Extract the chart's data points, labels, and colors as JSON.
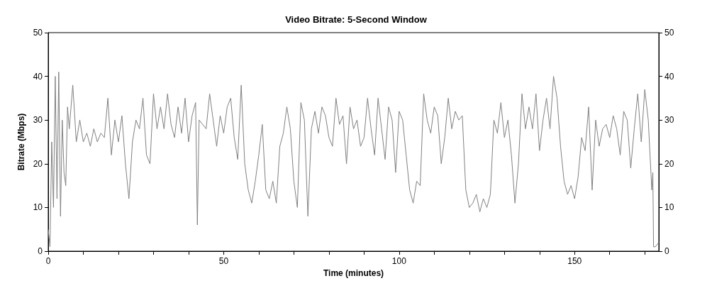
{
  "chart_data": {
    "type": "line",
    "title": "Video Bitrate: 5-Second Window",
    "xlabel": "Time (minutes)",
    "ylabel": "Bitrate (Mbps)",
    "xlim": [
      0,
      174
    ],
    "ylim": [
      0,
      50
    ],
    "y2lim": [
      0,
      50
    ],
    "xticks": [
      0,
      {
        "value": 10,
        "label": null
      },
      {
        "value": 20,
        "label": null
      },
      {
        "value": 30,
        "label": null
      },
      {
        "value": 40,
        "label": null
      },
      50,
      {
        "value": 60,
        "label": null
      },
      {
        "value": 70,
        "label": null
      },
      {
        "value": 80,
        "label": null
      },
      {
        "value": 90,
        "label": null
      },
      100,
      {
        "value": 110,
        "label": null
      },
      {
        "value": 120,
        "label": null
      },
      {
        "value": 130,
        "label": null
      },
      {
        "value": 140,
        "label": null
      },
      150,
      {
        "value": 160,
        "label": null
      },
      {
        "value": 170,
        "label": null
      }
    ],
    "yticks": [
      0,
      10,
      20,
      30,
      40,
      50
    ],
    "y2ticks": [
      0,
      10,
      20,
      30,
      40,
      50
    ],
    "marker": "none",
    "line_style": "solid",
    "series": [
      {
        "color": "#808080",
        "x": [
          0,
          0.5,
          1,
          1.5,
          2,
          2.5,
          3,
          3.5,
          4,
          4.5,
          5,
          5.5,
          6,
          7,
          8,
          9,
          10,
          11,
          12,
          13,
          14,
          15,
          16,
          17,
          18,
          19,
          20,
          21,
          22,
          23,
          24,
          25,
          26,
          27,
          28,
          29,
          30,
          31,
          32,
          33,
          34,
          35,
          36,
          37,
          38,
          39,
          40,
          41,
          42,
          42.5,
          43,
          45,
          46,
          47,
          48,
          49,
          50,
          51,
          52,
          53,
          54,
          55,
          56,
          57,
          58,
          59,
          60,
          61,
          62,
          63,
          64,
          65,
          66,
          67,
          68,
          69,
          70,
          71,
          72,
          73,
          74,
          75,
          76,
          77,
          78,
          79,
          80,
          81,
          82,
          83,
          84,
          85,
          86,
          87,
          88,
          89,
          90,
          91,
          92,
          93,
          94,
          95,
          96,
          97,
          98,
          99,
          100,
          101,
          102,
          103,
          104,
          105,
          106,
          107,
          108,
          109,
          110,
          111,
          112,
          113,
          114,
          115,
          116,
          117,
          118,
          119,
          120,
          121,
          122,
          123,
          124,
          125,
          126,
          127,
          128,
          129,
          130,
          131,
          132,
          133,
          134,
          135,
          136,
          137,
          138,
          139,
          140,
          141,
          142,
          143,
          144,
          145,
          146,
          147,
          148,
          149,
          150,
          151,
          152,
          153,
          154,
          155,
          156,
          157,
          158,
          159,
          160,
          161,
          162,
          163,
          164,
          165,
          166,
          167,
          168,
          169,
          170,
          171,
          172,
          172.3,
          172.5,
          173,
          174
        ],
        "values": [
          5,
          1,
          25,
          10,
          40,
          12,
          41,
          8,
          30,
          18,
          15,
          33,
          28,
          38,
          25,
          30,
          25,
          27,
          24,
          28,
          25,
          27,
          26,
          35,
          22,
          30,
          25,
          31,
          20,
          12,
          25,
          30,
          28,
          35,
          22,
          20,
          36,
          28,
          33,
          28,
          36,
          29,
          26,
          33,
          27,
          35,
          25,
          31,
          34,
          6,
          30,
          28,
          36,
          30,
          24,
          31,
          27,
          33,
          35,
          26,
          21,
          38,
          20,
          14,
          11,
          16,
          22,
          29,
          14,
          12,
          16,
          11,
          24,
          27,
          33,
          28,
          16,
          10,
          34,
          30,
          8,
          28,
          32,
          27,
          33,
          31,
          26,
          24,
          35,
          29,
          31,
          20,
          33,
          28,
          30,
          24,
          26,
          35,
          28,
          22,
          35,
          28,
          21,
          33,
          30,
          18,
          32,
          30,
          22,
          14,
          11,
          16,
          15,
          36,
          30,
          27,
          33,
          31,
          20,
          26,
          35,
          28,
          32,
          30,
          31,
          14,
          10,
          11,
          13,
          9,
          12,
          10,
          13,
          30,
          27,
          34,
          26,
          30,
          22,
          11,
          20,
          36,
          28,
          33,
          28,
          36,
          23,
          30,
          35,
          28,
          40,
          35,
          24,
          16,
          13,
          15,
          12,
          17,
          26,
          23,
          33,
          14,
          30,
          24,
          28,
          29,
          26,
          31,
          28,
          22,
          32,
          30,
          19,
          28,
          36,
          25,
          37,
          30,
          14,
          18,
          1,
          1,
          2
        ]
      }
    ]
  }
}
